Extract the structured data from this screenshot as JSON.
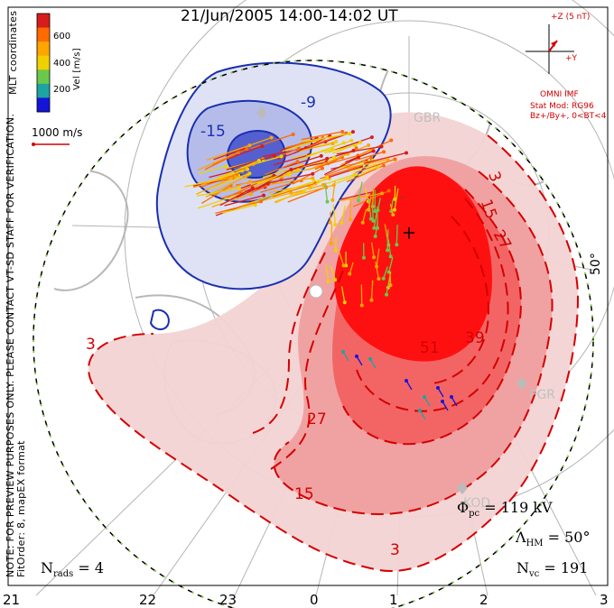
{
  "title": "21/Jun/2005 14:00-14:02 UT",
  "side_notes": {
    "coords": "MLT coordinates",
    "warning": "NOTE: FOR PREVIEW PURPOSES ONLY. PLEASE CONTACT VT-SD STAFF FOR VERIFICATION.",
    "fit": "FitOrder: 8, mapEX format"
  },
  "colorbar": {
    "label": "Vel [m/s]",
    "ticks": [
      "600",
      "400",
      "200"
    ],
    "colors": [
      "#d81c1c",
      "#ff6a00",
      "#ffa500",
      "#f0d000",
      "#6cc84a",
      "#1ea3a3",
      "#1414d8"
    ]
  },
  "scale_vector": {
    "label": "1000 m/s"
  },
  "imf": {
    "bz_label": "+Z (5 nT)",
    "by_label": "+Y",
    "source": "OMNI IMF",
    "model": "Stat Mod: RG96",
    "condition": "Bz+/By+, 0<BT<4"
  },
  "radars": [
    "GBR",
    "PGR",
    "KOD"
  ],
  "latitude_label": "50°",
  "contour_labels": {
    "negative": [
      "-9",
      "-15"
    ],
    "positive": [
      "3",
      "15",
      "27",
      "39",
      "51",
      "3",
      "15",
      "27",
      "3"
    ]
  },
  "stats": {
    "phi_pc": "= 119 kV",
    "lambda_hm": "= 50°",
    "n_vc": "= 191",
    "n_rads": "= 4"
  },
  "mlt_axis": [
    "21",
    "22",
    "23",
    "0",
    "1",
    "2",
    "3"
  ],
  "colors": {
    "positive_contour": "#d40000",
    "negative_contour": "#1a2fb0",
    "positive_fill": "#ff1a1a",
    "negative_fill": "#3b49c8",
    "coast": "#b8b8b8",
    "boundary": "#8bd04a"
  }
}
